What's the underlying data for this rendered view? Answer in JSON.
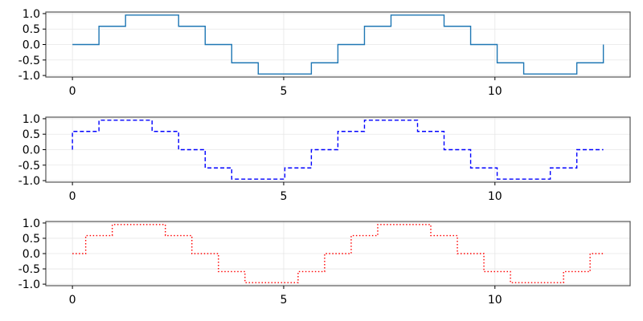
{
  "chart_data": [
    {
      "type": "line",
      "style": "step-post",
      "line_style": "solid",
      "color": "#1f77b4",
      "x": [
        0,
        0.628,
        1.257,
        1.885,
        2.513,
        3.142,
        3.77,
        4.398,
        5.027,
        5.655,
        6.283,
        6.912,
        7.54,
        8.168,
        8.796,
        9.425,
        10.053,
        10.681,
        11.31,
        11.938,
        12.566
      ],
      "y": [
        0.0,
        0.59,
        0.95,
        0.95,
        0.59,
        0.0,
        -0.59,
        -0.95,
        -0.95,
        -0.59,
        0.0,
        0.59,
        0.95,
        0.95,
        0.59,
        0.0,
        -0.59,
        -0.95,
        -0.95,
        -0.59,
        0.0
      ],
      "xlim": [
        -0.63,
        13.2
      ],
      "ylim": [
        -1.05,
        1.05
      ],
      "xticks": [
        0,
        5,
        10
      ],
      "yticks": [
        1.0,
        0.5,
        0.0,
        -0.5,
        -1.0
      ],
      "xtick_labels": [
        "0",
        "5",
        "10"
      ],
      "ytick_labels": [
        "1.0",
        "0.5",
        "0.0",
        "-0.5",
        "-1.0"
      ],
      "grid": true
    },
    {
      "type": "line",
      "style": "step-pre",
      "line_style": "dashed",
      "color": "#0000ff",
      "x": [
        0,
        0.628,
        1.257,
        1.885,
        2.513,
        3.142,
        3.77,
        4.398,
        5.027,
        5.655,
        6.283,
        6.912,
        7.54,
        8.168,
        8.796,
        9.425,
        10.053,
        10.681,
        11.31,
        11.938,
        12.566
      ],
      "y": [
        0.0,
        0.59,
        0.95,
        0.95,
        0.59,
        0.0,
        -0.59,
        -0.95,
        -0.95,
        -0.59,
        0.0,
        0.59,
        0.95,
        0.95,
        0.59,
        0.0,
        -0.59,
        -0.95,
        -0.95,
        -0.59,
        0.0
      ],
      "xlim": [
        -0.63,
        13.2
      ],
      "ylim": [
        -1.05,
        1.05
      ],
      "xticks": [
        0,
        5,
        10
      ],
      "yticks": [
        1.0,
        0.5,
        0.0,
        -0.5,
        -1.0
      ],
      "xtick_labels": [
        "0",
        "5",
        "10"
      ],
      "ytick_labels": [
        "1.0",
        "0.5",
        "0.0",
        "-0.5",
        "-1.0"
      ],
      "grid": true
    },
    {
      "type": "line",
      "style": "step-mid",
      "line_style": "dotted",
      "color": "#ff0000",
      "x": [
        0,
        0.628,
        1.257,
        1.885,
        2.513,
        3.142,
        3.77,
        4.398,
        5.027,
        5.655,
        6.283,
        6.912,
        7.54,
        8.168,
        8.796,
        9.425,
        10.053,
        10.681,
        11.31,
        11.938,
        12.566
      ],
      "y": [
        0.0,
        0.59,
        0.95,
        0.95,
        0.59,
        0.0,
        -0.59,
        -0.95,
        -0.95,
        -0.59,
        0.0,
        0.59,
        0.95,
        0.95,
        0.59,
        0.0,
        -0.59,
        -0.95,
        -0.95,
        -0.59,
        0.0
      ],
      "xlim": [
        -0.63,
        13.2
      ],
      "ylim": [
        -1.05,
        1.05
      ],
      "xticks": [
        0,
        5,
        10
      ],
      "yticks": [
        1.0,
        0.5,
        0.0,
        -0.5,
        -1.0
      ],
      "xtick_labels": [
        "0",
        "5",
        "10"
      ],
      "ytick_labels": [
        "1.0",
        "0.5",
        "0.0",
        "-0.5",
        "-1.0"
      ],
      "grid": true
    }
  ]
}
